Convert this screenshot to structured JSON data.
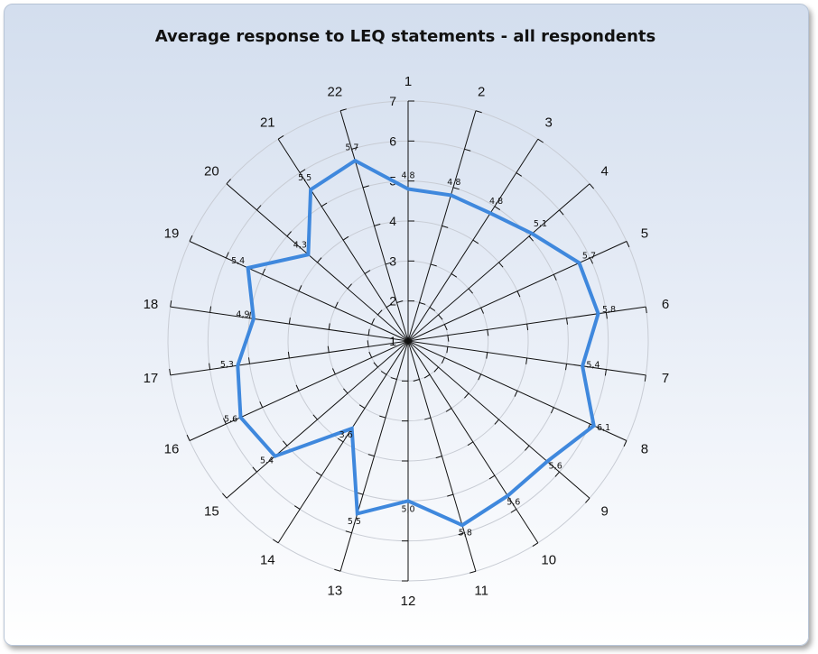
{
  "chart_data": {
    "type": "radar",
    "title": "Average response to LEQ statements - all respondents",
    "categories": [
      "1",
      "2",
      "3",
      "4",
      "5",
      "6",
      "7",
      "8",
      "9",
      "10",
      "11",
      "12",
      "13",
      "14",
      "15",
      "16",
      "17",
      "18",
      "19",
      "20",
      "21",
      "22"
    ],
    "values": [
      4.8,
      4.8,
      4.8,
      5.1,
      5.7,
      5.8,
      5.4,
      6.1,
      5.6,
      5.6,
      5.8,
      5.0,
      5.5,
      3.6,
      5.4,
      5.6,
      5.3,
      4.9,
      5.4,
      4.3,
      5.5,
      5.7
    ],
    "value_labels": [
      "4,8",
      "4,8",
      "4,8",
      "5,1",
      "5,7",
      "5,8",
      "5,4",
      "6,1",
      "5,6",
      "5,6",
      "5,8",
      "5,0",
      "5,5",
      "3,6",
      "5,4",
      "5,6",
      "5,3",
      "4,9",
      "5,4",
      "4,3",
      "5,5",
      "5,7"
    ],
    "radial_ticks": [
      "1",
      "2",
      "3",
      "4",
      "5",
      "6",
      "7"
    ],
    "rlim": [
      1,
      7
    ],
    "grid": true,
    "series_color": "#3f88dd"
  }
}
